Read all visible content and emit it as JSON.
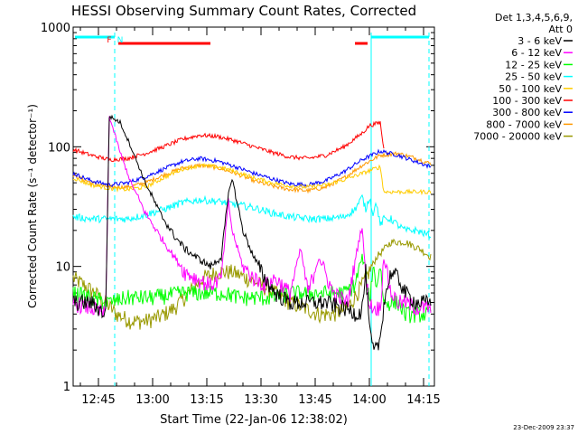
{
  "chart_data": {
    "type": "line",
    "title": "HESSI Observing Summary Count Rates, Corrected",
    "xlabel": "Start Time (22-Jan-06 12:38:02)",
    "ylabel": "Corrected Count Rate (s⁻¹ detector⁻¹)",
    "y_scale": "log",
    "ylim": [
      1,
      1000
    ],
    "xlim_minutes_after_start": [
      0,
      100
    ],
    "start_time": "12:38:02",
    "x_ticks": [
      {
        "label": "12:45",
        "t": 7
      },
      {
        "label": "13:00",
        "t": 22
      },
      {
        "label": "13:15",
        "t": 37
      },
      {
        "label": "13:30",
        "t": 52
      },
      {
        "label": "13:45",
        "t": 67
      },
      {
        "label": "14:00",
        "t": 82
      },
      {
        "label": "14:15",
        "t": 97
      }
    ],
    "y_tick_labels": [
      "1",
      "10",
      "100",
      "1000"
    ],
    "legend_header": [
      "Det 1,3,4,5,6,9,",
      "Att 0"
    ],
    "series": [
      {
        "name": "3 - 6 keV",
        "color": "#000000",
        "x": [
          0,
          5,
          9,
          10,
          13,
          16,
          20,
          24,
          28,
          31,
          34,
          38,
          41,
          43,
          44,
          47,
          50,
          53,
          56,
          60,
          65,
          70,
          75,
          79,
          80,
          81,
          82,
          83,
          84,
          85,
          86,
          88,
          90,
          92,
          95,
          97,
          99
        ],
        "y": [
          5,
          5,
          4,
          180,
          160,
          100,
          50,
          28,
          18,
          14,
          12,
          10,
          12,
          40,
          55,
          20,
          12,
          8,
          6,
          5,
          5,
          5,
          4.5,
          4,
          4.5,
          9,
          3,
          2,
          2,
          2.5,
          5,
          9,
          8,
          6,
          5,
          5,
          5
        ]
      },
      {
        "name": "6 - 12 keV",
        "color": "#ff00ff",
        "x": [
          0,
          5,
          9,
          10,
          13,
          16,
          20,
          24,
          28,
          31,
          34,
          38,
          41,
          43,
          44,
          47,
          50,
          53,
          56,
          60,
          63,
          65,
          68,
          72,
          76,
          79,
          80,
          81,
          82,
          83,
          84,
          85,
          86,
          88,
          90,
          92,
          95,
          97,
          99
        ],
        "y": [
          5,
          4.5,
          4,
          180,
          90,
          50,
          28,
          18,
          12,
          9,
          8,
          7,
          8,
          35,
          20,
          10,
          8,
          7,
          8,
          6,
          14,
          6,
          12,
          6,
          5,
          16,
          22,
          8,
          5,
          4.5,
          4.5,
          4.5,
          12,
          6,
          5,
          5,
          4.5,
          4.5,
          4.5
        ]
      },
      {
        "name": "12 - 25 keV",
        "color": "#00ff00",
        "x": [
          0,
          5,
          9,
          10,
          15,
          22,
          30,
          37,
          42,
          46,
          50,
          55,
          60,
          65,
          70,
          75,
          78,
          80,
          81,
          82,
          83,
          84,
          85,
          86,
          88,
          90,
          92,
          95,
          97,
          99
        ],
        "y": [
          6,
          5.5,
          5,
          5,
          5.5,
          5.5,
          6,
          6,
          6,
          5.5,
          5.5,
          5.5,
          6,
          6,
          6,
          6,
          7,
          12,
          9,
          5,
          10,
          7,
          10,
          5,
          5,
          5,
          4,
          4,
          4,
          4
        ]
      },
      {
        "name": "25 - 50 keV",
        "color": "#00ffff",
        "x": [
          0,
          5,
          10,
          15,
          20,
          25,
          30,
          35,
          40,
          45,
          50,
          55,
          60,
          65,
          70,
          75,
          78,
          80,
          81,
          82,
          83,
          84,
          85,
          86,
          88,
          90,
          92,
          95,
          97,
          99
        ],
        "y": [
          26,
          25,
          25,
          25,
          27,
          30,
          34,
          36,
          35,
          33,
          31,
          28,
          26,
          25,
          25,
          26,
          30,
          38,
          30,
          38,
          28,
          34,
          22,
          25,
          25,
          22,
          20,
          20,
          19,
          18
        ]
      },
      {
        "name": "50 - 100 keV",
        "color": "#ffcc00",
        "x": [
          0,
          5,
          10,
          15,
          20,
          25,
          30,
          35,
          40,
          45,
          50,
          55,
          60,
          65,
          70,
          75,
          80,
          85,
          86,
          88,
          90,
          92,
          95,
          97,
          99
        ],
        "y": [
          55,
          48,
          45,
          44,
          46,
          55,
          65,
          70,
          68,
          62,
          55,
          50,
          47,
          46,
          48,
          53,
          60,
          68,
          42,
          42,
          42,
          42,
          42,
          42,
          42
        ]
      },
      {
        "name": "100 - 300 keV",
        "color": "#ff0000",
        "x": [
          0,
          5,
          10,
          15,
          20,
          25,
          30,
          35,
          40,
          45,
          50,
          55,
          60,
          65,
          70,
          75,
          80,
          82,
          85,
          86
        ],
        "y": [
          95,
          85,
          78,
          80,
          88,
          100,
          115,
          125,
          122,
          112,
          100,
          90,
          82,
          80,
          85,
          100,
          130,
          150,
          160,
          95
        ]
      },
      {
        "name": "300 - 800 keV",
        "color": "#0000ff",
        "x": [
          0,
          5,
          10,
          15,
          20,
          25,
          30,
          35,
          40,
          45,
          50,
          55,
          60,
          65,
          70,
          75,
          80,
          85,
          90,
          95,
          99
        ],
        "y": [
          60,
          52,
          48,
          50,
          56,
          65,
          75,
          80,
          76,
          68,
          60,
          54,
          49,
          48,
          52,
          62,
          78,
          92,
          85,
          75,
          68
        ]
      },
      {
        "name": "800 - 7000 keV",
        "color": "#ff9900",
        "x": [
          0,
          5,
          10,
          15,
          20,
          25,
          30,
          35,
          40,
          45,
          50,
          55,
          60,
          65,
          70,
          75,
          80,
          85,
          90,
          95,
          99
        ],
        "y": [
          58,
          50,
          46,
          46,
          50,
          58,
          66,
          70,
          67,
          60,
          52,
          47,
          44,
          43,
          46,
          55,
          70,
          85,
          88,
          80,
          72
        ]
      },
      {
        "name": "7000 - 20000 keV",
        "color": "#999900",
        "x": [
          0,
          3,
          6,
          9,
          12,
          16,
          20,
          24,
          28,
          32,
          36,
          40,
          44,
          48,
          52,
          56,
          60,
          64,
          68,
          72,
          76,
          80,
          84,
          88,
          92,
          96,
          99
        ],
        "y": [
          8,
          7,
          6,
          5,
          4,
          3.5,
          3.5,
          3.8,
          4.5,
          6,
          8,
          9,
          9,
          8,
          7,
          6,
          5,
          4.5,
          4,
          4,
          4.5,
          7,
          12,
          16,
          16,
          14,
          12
        ]
      }
    ],
    "annotations": [
      {
        "text": "F",
        "color": "#ff0000",
        "t": 10
      },
      {
        "text": "N",
        "color": "#00ffff",
        "t": 13
      }
    ],
    "attenuator_bars": [
      {
        "color": "#ff0000",
        "row": "lower",
        "t_start": 12.5,
        "t_end": 38
      },
      {
        "color": "#ff0000",
        "row": "lower",
        "t_start": 78,
        "t_end": 81.5
      },
      {
        "color": "#00ffff",
        "row": "upper",
        "t_start": 0.5,
        "t_end": 11.5
      },
      {
        "color": "#00ffff",
        "row": "upper",
        "t_start": 82.5,
        "t_end": 98.5
      }
    ],
    "night_boundaries": [
      {
        "t": 11.5,
        "style": "dashed",
        "color": "#00ffff"
      },
      {
        "t": 82.5,
        "style": "solid",
        "color": "#00ffff"
      },
      {
        "t": 98.5,
        "style": "dashed",
        "color": "#00ffff"
      }
    ],
    "footer_date": "23-Dec-2009 23:37"
  }
}
